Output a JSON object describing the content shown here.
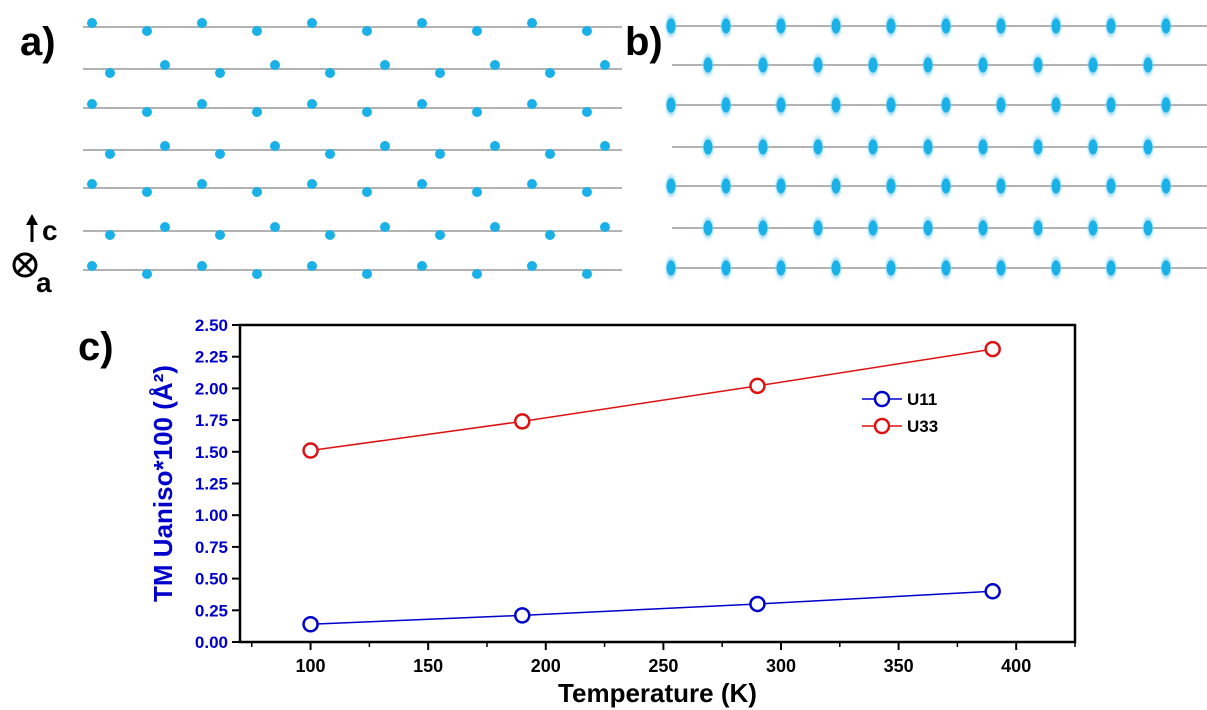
{
  "panels": {
    "a_label": "a)",
    "b_label": "b)",
    "c_label": "c)"
  },
  "axis_indicator": {
    "up_label": "c",
    "into_label": "a"
  },
  "colors": {
    "atom": "#1ab0e8",
    "atom_halo": "#a9def5",
    "lattice_line": "#999999",
    "u11": "#0000cc",
    "u33": "#dd1111",
    "ylabel": "#0000cc"
  },
  "chart_data": {
    "type": "line",
    "title": "",
    "xlabel": "Temperature (K)",
    "ylabel": "TM Uaniso*100 (Å²)",
    "xlim": [
      70,
      425
    ],
    "ylim": [
      0,
      2.5
    ],
    "xticks": [
      100,
      150,
      200,
      250,
      300,
      350,
      400
    ],
    "yticks": [
      0.0,
      0.25,
      0.5,
      0.75,
      1.0,
      1.25,
      1.5,
      1.75,
      2.0,
      2.25,
      2.5
    ],
    "xtick_labels": [
      "100",
      "150",
      "200",
      "250",
      "300",
      "350",
      "400"
    ],
    "ytick_labels": [
      "0.00",
      "0.25",
      "0.50",
      "0.75",
      "1.00",
      "1.25",
      "1.50",
      "1.75",
      "2.00",
      "2.25",
      "2.50"
    ],
    "legend_position": "top-right",
    "grid": false,
    "x": [
      100,
      190,
      290,
      390
    ],
    "series": [
      {
        "name": "U11",
        "values": [
          0.14,
          0.21,
          0.3,
          0.4
        ],
        "marker": "open-circle"
      },
      {
        "name": "U33",
        "values": [
          1.51,
          1.74,
          2.02,
          2.31
        ],
        "marker": "open-circle"
      }
    ]
  }
}
